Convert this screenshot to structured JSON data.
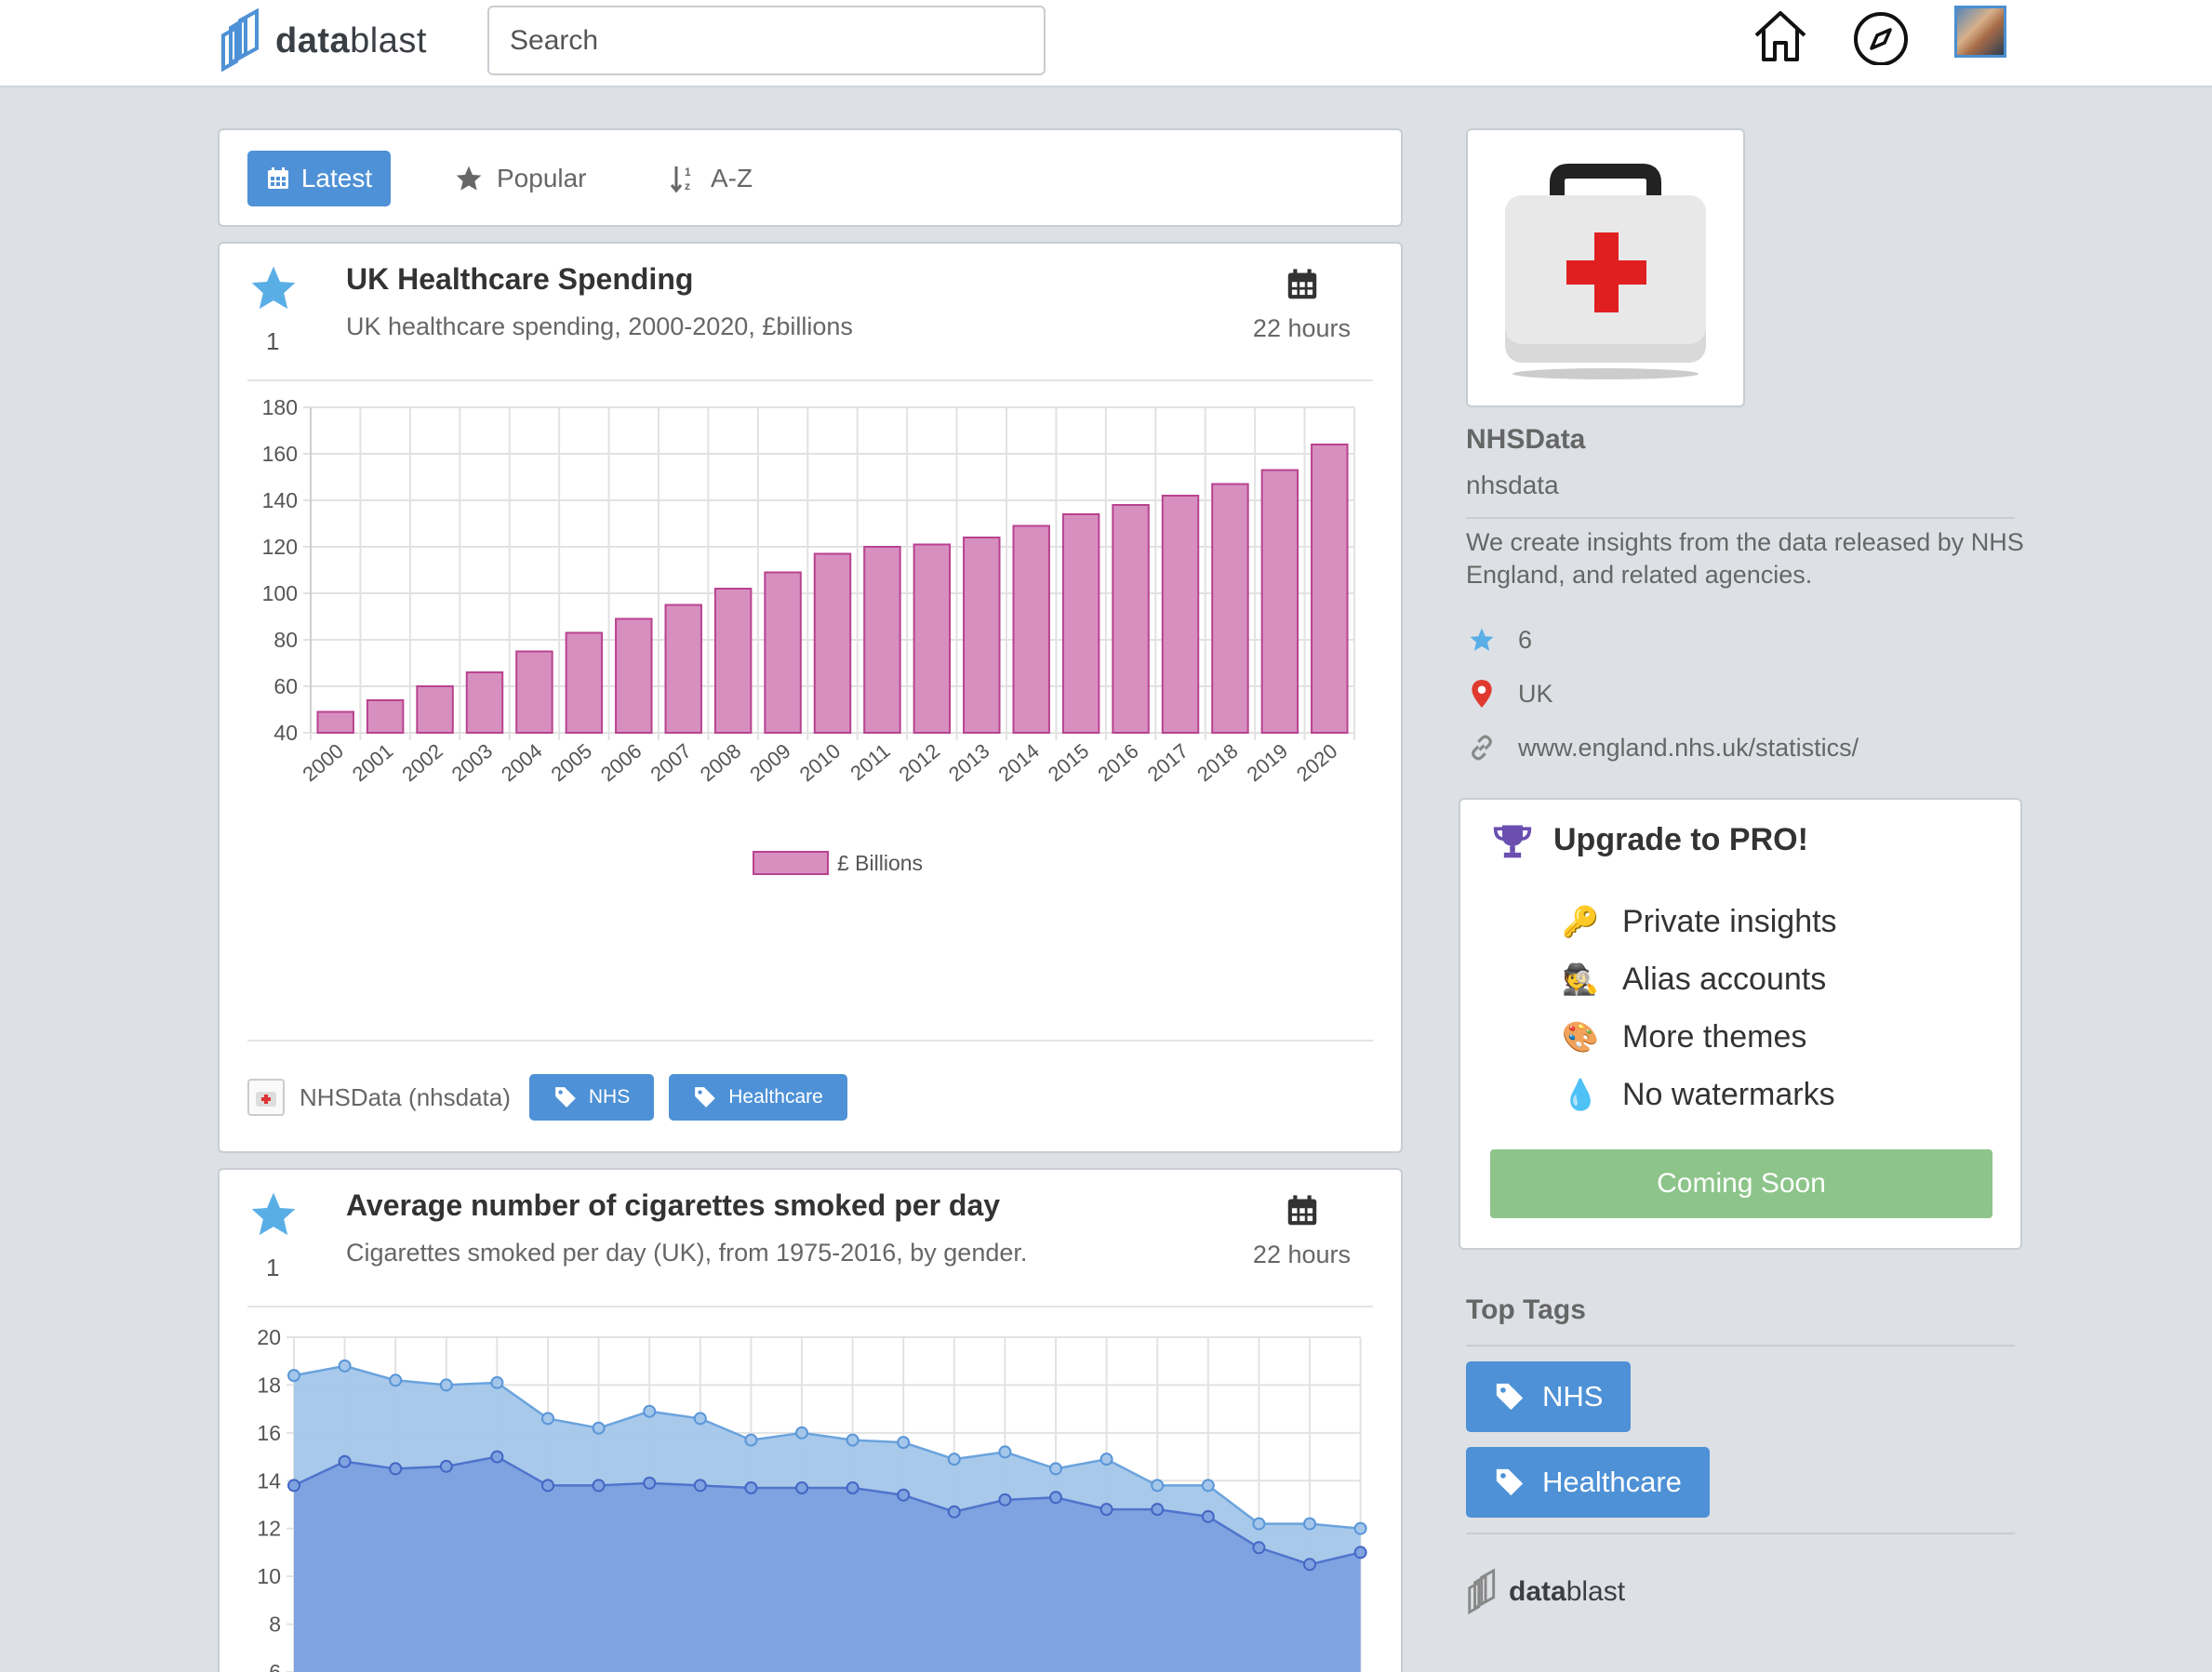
{
  "app": {
    "name_bold": "data",
    "name_rest": "blast"
  },
  "search": {
    "placeholder": "Search"
  },
  "nav": {
    "home_icon": "home-icon",
    "explore_icon": "compass-icon",
    "avatar": "user-avatar"
  },
  "filters": [
    {
      "label": "Latest",
      "icon": "calendar-icon",
      "active": true
    },
    {
      "label": "Popular",
      "icon": "star-icon",
      "active": false
    },
    {
      "label": "A-Z",
      "icon": "sort-alpha-icon",
      "active": false
    }
  ],
  "insights": [
    {
      "title": "UK Healthcare Spending",
      "description": "UK healthcare spending, 2000-2020, £billions",
      "stars": "1",
      "time": "22 hours",
      "owner": "NHSData (nhsdata)",
      "tags": [
        "NHS",
        "Healthcare"
      ]
    },
    {
      "title": "Average number of cigarettes smoked per day",
      "description": "Cigarettes smoked per day (UK), from 1975-2016, by gender.",
      "stars": "1",
      "time": "22 hours"
    }
  ],
  "chart_data": [
    {
      "type": "bar",
      "categories": [
        "2000",
        "2001",
        "2002",
        "2003",
        "2004",
        "2005",
        "2006",
        "2007",
        "2008",
        "2009",
        "2010",
        "2011",
        "2012",
        "2013",
        "2014",
        "2015",
        "2016",
        "2017",
        "2018",
        "2019",
        "2020"
      ],
      "series": [
        {
          "name": "£ Billions",
          "values": [
            49,
            54,
            60,
            66,
            75,
            83,
            89,
            95,
            102,
            109,
            117,
            120,
            121,
            124,
            129,
            134,
            138,
            142,
            147,
            153,
            164
          ]
        }
      ],
      "ylim": [
        40,
        180
      ],
      "yticks": [
        40,
        60,
        80,
        100,
        120,
        140,
        160,
        180
      ],
      "legend": "bottom-center",
      "grid": true,
      "color": "#d78fc0"
    },
    {
      "type": "area",
      "x_count": 22,
      "series": [
        {
          "values": [
            18.4,
            18.8,
            18.2,
            18.0,
            18.1,
            16.6,
            16.2,
            16.9,
            16.6,
            15.7,
            16.0,
            15.7,
            15.6,
            14.9,
            15.2,
            14.5,
            14.9,
            13.8,
            13.8,
            12.2,
            12.2,
            12.0
          ],
          "color": "#a4c6ea"
        },
        {
          "values": [
            13.8,
            14.8,
            14.5,
            14.6,
            15.0,
            13.8,
            13.8,
            13.9,
            13.8,
            13.7,
            13.7,
            13.7,
            13.4,
            12.7,
            13.2,
            13.3,
            12.8,
            12.8,
            12.5,
            11.2,
            10.5,
            11.0
          ],
          "color": "#7ea3e0"
        }
      ],
      "ylim": [
        6,
        20
      ],
      "yticks": [
        6,
        8,
        10,
        12,
        14,
        16,
        18,
        20
      ],
      "grid": true
    }
  ],
  "profile": {
    "name": "NHSData",
    "handle": "nhsdata",
    "description": "We create insights from the data released by NHS England, and related agencies.",
    "stars": "6",
    "location": "UK",
    "website": "www.england.nhs.uk/statistics/"
  },
  "pro": {
    "title": "Upgrade to PRO!",
    "items": [
      {
        "emoji": "🔑",
        "label": "Private insights"
      },
      {
        "emoji": "🕵",
        "label": "Alias accounts"
      },
      {
        "emoji": "🎨",
        "label": "More themes"
      },
      {
        "emoji": "💧",
        "label": "No watermarks"
      }
    ],
    "button": "Coming Soon"
  },
  "top_tags": {
    "title": "Top Tags",
    "tags": [
      "NHS",
      "Healthcare"
    ]
  },
  "colors": {
    "accent": "#4e91d6",
    "pro_button": "#8dc48a",
    "star": "#5aaee6"
  }
}
